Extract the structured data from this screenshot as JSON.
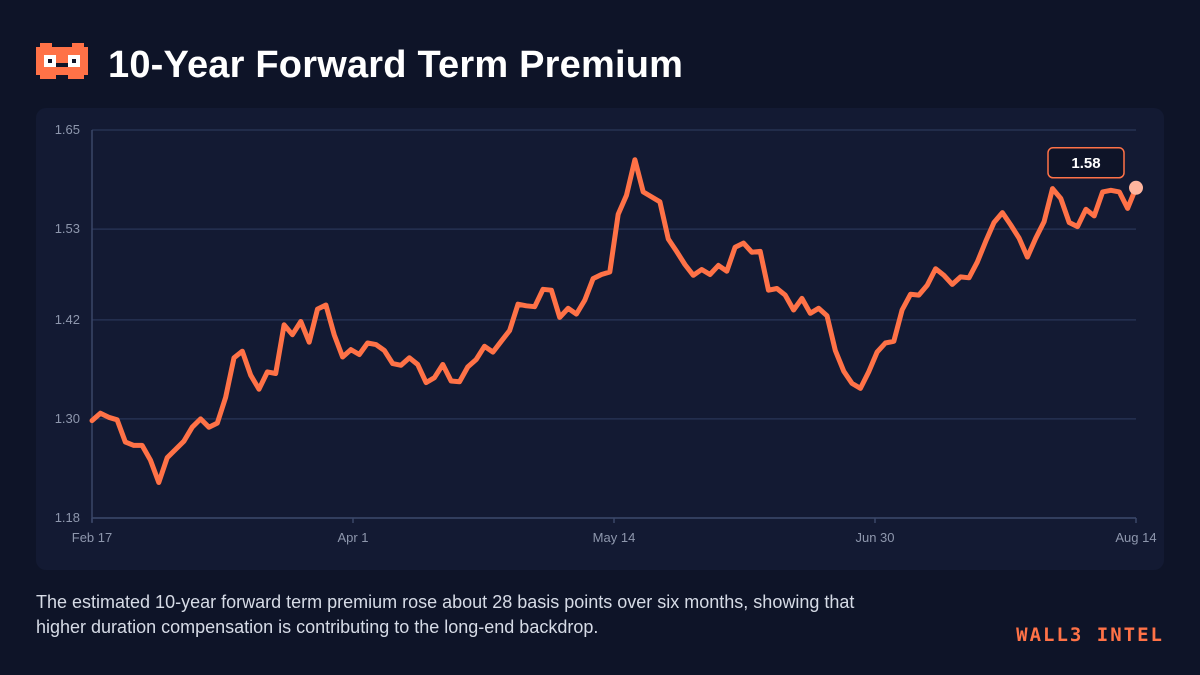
{
  "header": {
    "title": "10-Year Forward Term Premium"
  },
  "caption": "The estimated 10-year forward term premium rose about 28 basis points over six months, showing that higher duration compensation is contributing to the long-end backdrop.",
  "brand": "WALL3 INTEL",
  "colors": {
    "background": "#0e1428",
    "panel": "#131a33",
    "line": "#ff7247",
    "marker": "#ffb59e",
    "grid": "#263252"
  },
  "icons": {
    "logo": "pixel-robot-mask-icon"
  },
  "chart_data": {
    "type": "line",
    "title": "10-Year Forward Term Premium",
    "xlabel": "",
    "ylabel": "",
    "ylim": [
      1.18,
      1.65
    ],
    "y_ticks": [
      "1.18",
      "1.30",
      "1.42",
      "1.53",
      "1.65"
    ],
    "x_ticks": [
      "Feb 17",
      "Apr 1",
      "May 14",
      "Jun 30",
      "Aug 14"
    ],
    "grid": true,
    "callout": "1.58",
    "series": [
      {
        "values": [
          1.298,
          1.307,
          1.302,
          1.299,
          1.272,
          1.268,
          1.268,
          1.25,
          1.223,
          1.253,
          1.263,
          1.273,
          1.29,
          1.3,
          1.29,
          1.295,
          1.326,
          1.374,
          1.382,
          1.353,
          1.336,
          1.357,
          1.355,
          1.414,
          1.402,
          1.418,
          1.393,
          1.433,
          1.438,
          1.402,
          1.375,
          1.384,
          1.378,
          1.392,
          1.39,
          1.383,
          1.367,
          1.365,
          1.374,
          1.366,
          1.344,
          1.35,
          1.366,
          1.346,
          1.345,
          1.363,
          1.372,
          1.388,
          1.381,
          1.394,
          1.407,
          1.439,
          1.437,
          1.436,
          1.457,
          1.456,
          1.423,
          1.434,
          1.427,
          1.444,
          1.47,
          1.475,
          1.478,
          1.548,
          1.571,
          1.614,
          1.575,
          1.569,
          1.563,
          1.518,
          1.503,
          1.487,
          1.474,
          1.481,
          1.475,
          1.486,
          1.479,
          1.508,
          1.513,
          1.502,
          1.503,
          1.456,
          1.458,
          1.45,
          1.432,
          1.446,
          1.428,
          1.434,
          1.425,
          1.383,
          1.358,
          1.343,
          1.337,
          1.357,
          1.381,
          1.392,
          1.394,
          1.432,
          1.451,
          1.45,
          1.462,
          1.482,
          1.474,
          1.463,
          1.472,
          1.471,
          1.49,
          1.515,
          1.538,
          1.55,
          1.535,
          1.519,
          1.496,
          1.519,
          1.539,
          1.579,
          1.567,
          1.538,
          1.533,
          1.554,
          1.546,
          1.575,
          1.577,
          1.575,
          1.555,
          1.58
        ]
      }
    ]
  }
}
